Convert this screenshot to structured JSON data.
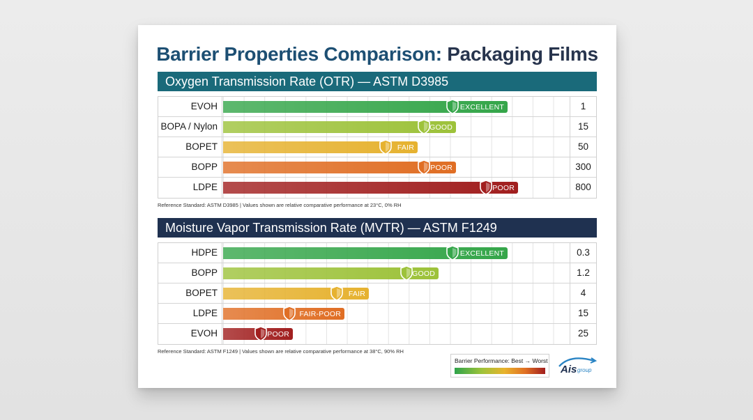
{
  "title_main": "Barrier Properties Comparison:",
  "title_accent": "Packaging Films",
  "chart_data": [
    {
      "type": "bar",
      "title": "Oxygen Transmission Rate (OTR) — ASTM D3985",
      "categories": [
        "EVOH",
        "BOPA / Nylon",
        "BOPET",
        "BOPP",
        "LDPE"
      ],
      "values": [
        1,
        15,
        50,
        300,
        800
      ],
      "bar_extent": [
        0.82,
        0.67,
        0.56,
        0.67,
        0.85
      ],
      "ratings": [
        "EXCELLENT",
        "GOOD",
        "FAIR",
        "POOR",
        "POOR"
      ],
      "colors": [
        "#35a64a",
        "#9dc23a",
        "#e6b230",
        "#e06e24",
        "#a11f1f"
      ],
      "footnote": "Reference Standard: ASTM D3985 | Values shown are relative comparative performance at 23°C, 0% RH"
    },
    {
      "type": "bar",
      "title": "Moisture Vapor Transmission Rate (MVTR) — ASTM F1249",
      "categories": [
        "HDPE",
        "BOPP",
        "BOPET",
        "LDPE",
        "EVOH"
      ],
      "values": [
        0.3,
        1.2,
        4,
        15,
        25
      ],
      "bar_extent": [
        0.82,
        0.62,
        0.42,
        0.35,
        0.2
      ],
      "ratings": [
        "EXCELLENT",
        "GOOD",
        "FAIR",
        "FAIR-POOR",
        "POOR"
      ],
      "colors": [
        "#35a64a",
        "#9dc23a",
        "#e6b230",
        "#e06e24",
        "#a11f1f"
      ],
      "footnote": "Reference Standard: ASTM F1249 | Values shown are relative comparative performance at 38°C, 90% RH"
    }
  ],
  "legend": {
    "label": "Barrier Performance: Best → Worst"
  },
  "logo": {
    "main": "Ais",
    "sub": "group"
  }
}
